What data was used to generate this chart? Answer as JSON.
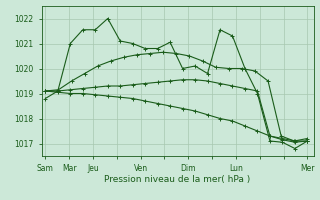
{
  "bg_color": "#cce8d8",
  "line_color": "#1a5c1a",
  "grid_color": "#a8c8b0",
  "xlabel": "Pression niveau de la mer( hPa )",
  "ylim": [
    1016.5,
    1022.5
  ],
  "yticks": [
    1017,
    1018,
    1019,
    1020,
    1021,
    1022
  ],
  "xtick_labels": [
    "Sam",
    "Mar",
    "Jeu",
    "",
    "Ven",
    "",
    "Dim",
    "",
    "Lun",
    "",
    "",
    "Mer"
  ],
  "xtick_positions": [
    0,
    2,
    4,
    6,
    8,
    10,
    12,
    14,
    16,
    18,
    20,
    22
  ],
  "series": [
    [
      1018.8,
      1019.1,
      1021.0,
      1021.55,
      1021.55,
      1022.0,
      1021.1,
      1021.0,
      1020.8,
      1020.8,
      1021.05,
      1020.0,
      1020.1,
      1019.8,
      1021.55,
      1021.3,
      1020.0,
      1019.0,
      1017.1,
      1017.05,
      1016.8,
      1017.1
    ],
    [
      1019.1,
      1019.15,
      1019.5,
      1019.8,
      1020.1,
      1020.3,
      1020.45,
      1020.55,
      1020.6,
      1020.65,
      1020.6,
      1020.5,
      1020.3,
      1020.05,
      1020.0,
      1020.0,
      1019.9,
      1019.5,
      1017.3,
      1017.1,
      1017.2
    ],
    [
      1019.1,
      1019.05,
      1019.0,
      1019.0,
      1018.95,
      1018.9,
      1018.85,
      1018.8,
      1018.7,
      1018.6,
      1018.5,
      1018.4,
      1018.3,
      1018.15,
      1018.0,
      1017.9,
      1017.7,
      1017.5,
      1017.3,
      1017.15,
      1017.05,
      1017.1
    ],
    [
      1019.1,
      1019.1,
      1019.15,
      1019.2,
      1019.25,
      1019.3,
      1019.3,
      1019.35,
      1019.4,
      1019.45,
      1019.5,
      1019.55,
      1019.55,
      1019.5,
      1019.4,
      1019.3,
      1019.2,
      1019.1,
      1017.3,
      1017.2,
      1017.1,
      1017.1
    ]
  ],
  "series_lengths": [
    22,
    21,
    22,
    22
  ],
  "marker": "+",
  "markersize": 3,
  "linewidth": 0.8
}
